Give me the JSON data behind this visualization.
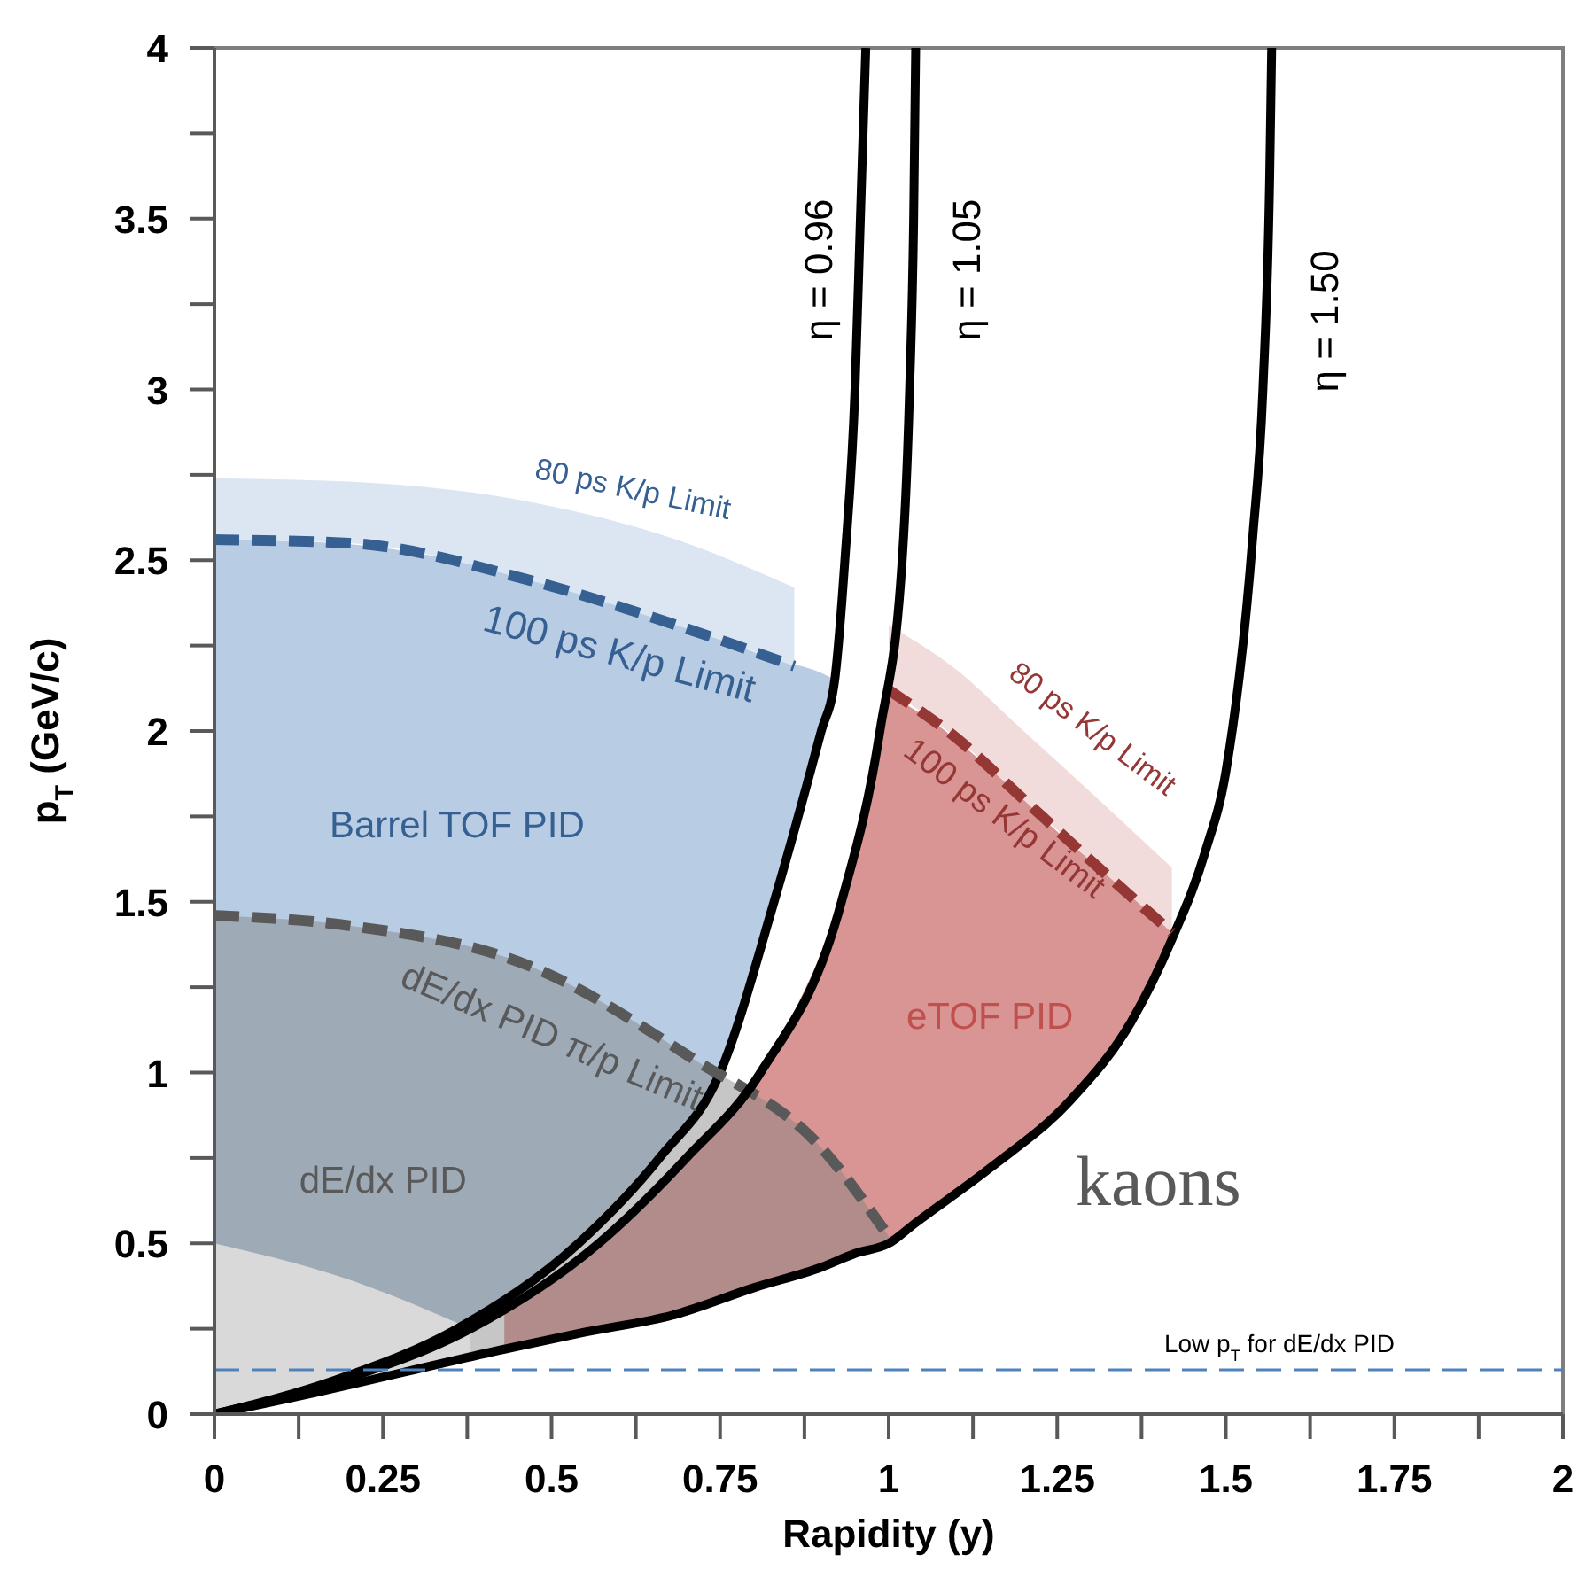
{
  "chart_data": {
    "type": "line",
    "xlabel": "Rapidity (y)",
    "ylabel": "p$_{T}$ (GeV/c)",
    "xlim": [
      0,
      2
    ],
    "ylim": [
      0,
      4
    ],
    "xticks": [
      0,
      {
        "value": 0.125,
        "label": null
      },
      0.25,
      {
        "value": 0.375,
        "label": null
      },
      0.5,
      {
        "value": 0.625,
        "label": null
      },
      0.75,
      {
        "value": 0.875,
        "label": null
      },
      1,
      {
        "value": 1.125,
        "label": null
      },
      1.25,
      {
        "value": 1.375,
        "label": null
      },
      1.5,
      {
        "value": 1.625,
        "label": null
      },
      1.75,
      {
        "value": 1.875,
        "label": null
      },
      2
    ],
    "yticks": [
      0,
      {
        "value": 0.25,
        "label": null
      },
      0.5,
      {
        "value": 0.75,
        "label": null
      },
      1,
      {
        "value": 1.25,
        "label": null
      },
      1.5,
      {
        "value": 1.75,
        "label": null
      },
      2,
      {
        "value": 2.25,
        "label": null
      },
      2.5,
      {
        "value": 2.75,
        "label": null
      },
      3,
      {
        "value": 3.25,
        "label": null
      },
      3.5,
      {
        "value": 3.75,
        "label": null
      },
      4
    ],
    "grid": false,
    "legend": false,
    "marker": "none",
    "series": [
      {
        "line_style": "solid",
        "color": "#000000",
        "x": [
          0,
          0.18,
          0.36,
          0.54,
          0.66,
          0.75,
          0.83,
          0.9,
          0.92,
          0.935,
          0.95,
          0.958,
          0.966
        ],
        "values": [
          0,
          0.1,
          0.25,
          0.5,
          0.75,
          1.0,
          1.5,
          2.0,
          2.15,
          2.5,
          3.0,
          3.5,
          4.0
        ],
        "lower": [
          0,
          0.1,
          0.25,
          0.5,
          0.75,
          1.0,
          1.5,
          2.0,
          2.15,
          null,
          null,
          null,
          null
        ],
        "upper": [
          2.56,
          2.55,
          2.5,
          2.42,
          2.34,
          2.27,
          2.21,
          2.17,
          2.15,
          null,
          null,
          null,
          null
        ]
      },
      {
        "line_style": "solid",
        "color": "#000000",
        "x": [
          0,
          0.12,
          0.43,
          0.55,
          0.68,
          0.8,
          0.9,
          0.95,
          1.0,
          1.04,
          1.15,
          1.27,
          1.36,
          1.42,
          1.47,
          1.5,
          1.54,
          1.555,
          1.565,
          1.568
        ],
        "values": [
          0,
          0.05,
          0.19,
          0.24,
          0.29,
          0.37,
          0.43,
          0.47,
          0.5,
          0.56,
          0.72,
          0.92,
          1.15,
          1.39,
          1.65,
          1.88,
          2.57,
          3.0,
          3.62,
          4.0
        ],
        "lower": [
          null,
          null,
          0.19,
          0.24,
          0.29,
          0.37,
          0.43,
          0.47,
          0.5,
          0.56,
          0.72,
          0.92,
          1.15,
          1.39,
          null,
          null,
          null,
          null,
          null,
          null
        ],
        "upper": [
          null,
          null,
          0.31,
          0.47,
          0.71,
          0.97,
          1.35,
          1.6,
          2.1,
          2.06,
          1.89,
          1.67,
          1.52,
          1.41,
          null,
          null,
          null,
          null,
          null,
          null
        ]
      },
      {
        "line_style": "dashed",
        "color": "#366092",
        "x": [
          0,
          0.2,
          0.47,
          0.7,
          0.86
        ],
        "values": [
          2.56,
          2.55,
          2.44,
          2.3,
          2.19
        ],
        "lower": [
          2.56,
          2.55,
          2.44,
          2.3,
          2.19
        ],
        "upper": [
          2.74,
          2.73,
          2.67,
          2.55,
          2.42
        ]
      },
      {
        "line_style": "dashed",
        "color": "#953735",
        "x": [
          1.0,
          1.1,
          1.2,
          1.3,
          1.42
        ],
        "values": [
          2.12,
          1.98,
          1.8,
          1.62,
          1.41
        ],
        "lower": [
          2.12,
          1.98,
          1.8,
          1.62,
          1.41
        ],
        "upper": [
          2.31,
          2.18,
          2.0,
          1.82,
          1.6
        ]
      },
      {
        "line_style": "dashed",
        "color": "#595959",
        "x": [
          0,
          0.2,
          0.47,
          0.71,
          0.9,
          1.0
        ],
        "values": [
          1.46,
          1.43,
          1.31,
          1.04,
          0.78,
          0.52
        ],
        "lower": [
          0,
          0.08,
          0.2,
          0.3,
          0.43,
          0.5
        ],
        "upper": [
          1.46,
          1.43,
          1.31,
          1.04,
          0.78,
          0.52
        ]
      },
      {
        "line_style": "solid",
        "color": "#000000",
        "x": [
          0,
          0.19,
          0.38,
          0.57,
          0.7,
          0.81,
          0.93,
          0.987,
          1.02,
          1.031,
          1.037,
          1.04
        ],
        "values": [
          0,
          0.1,
          0.25,
          0.5,
          0.75,
          1.0,
          1.5,
          2.0,
          2.5,
          3.0,
          3.5,
          4.0
        ],
        "lower": [
          0,
          0.08,
          0.17,
          null,
          null,
          null,
          null,
          null,
          null,
          null,
          null,
          null
        ],
        "upper": [
          0.5,
          0.4,
          0.25,
          null,
          null,
          null,
          null,
          null,
          null,
          null,
          null,
          null
        ]
      }
    ],
    "ref_lines": [
      {
        "axis": "y",
        "value": 0.13,
        "label": "Low p$_{T}$ for dE/dx PID",
        "color": "#4f81bd",
        "line_style": "dashed"
      }
    ],
    "annotations": [
      "η = 0.96",
      "η = 1.05",
      "η = 1.50",
      "80 ps K/p Limit",
      "100 ps K/p Limit",
      "Barrel TOF PID",
      "dE/dx PID π/p Limit",
      "dE/dx PID",
      "80 ps K/p Limit",
      "100 ps K/p Limit",
      "eTOF PID",
      "kaons"
    ]
  }
}
